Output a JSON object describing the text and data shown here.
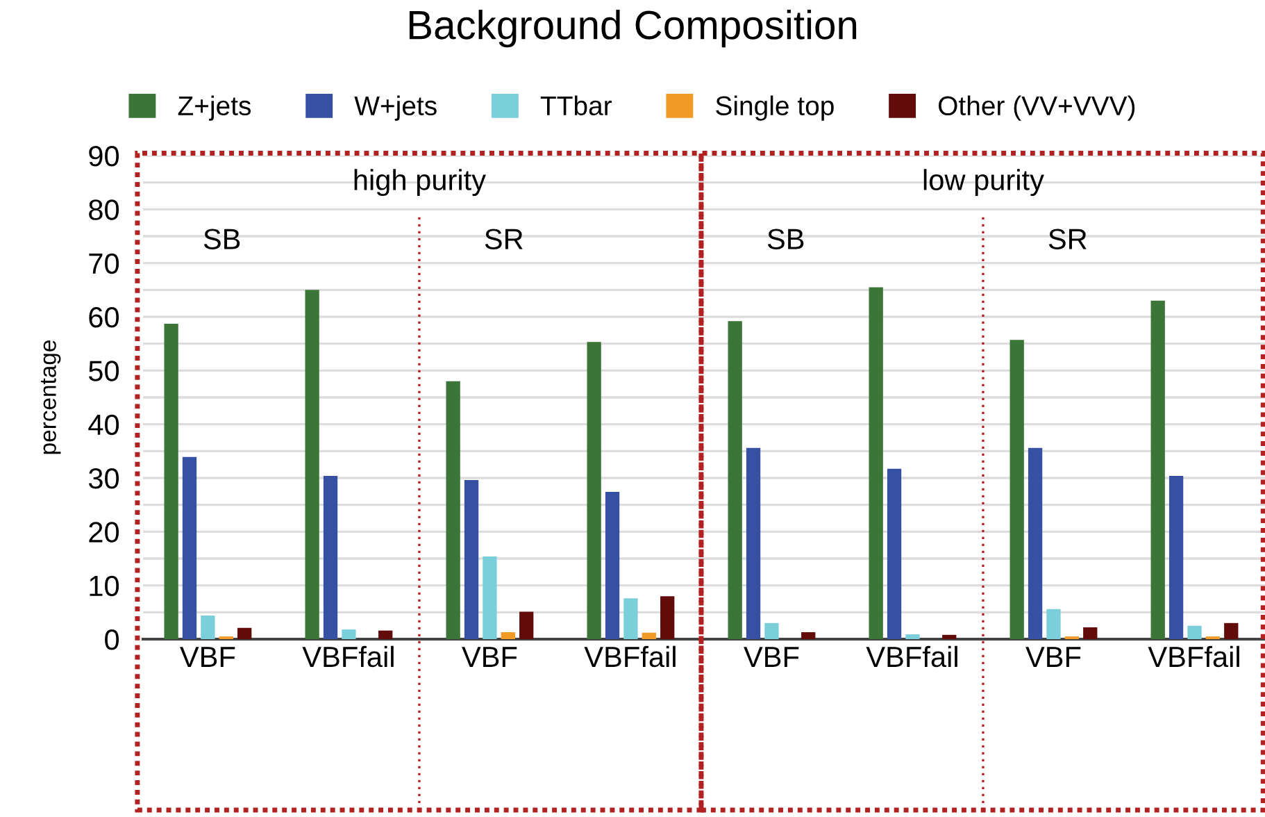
{
  "chart_data": {
    "type": "bar",
    "title": "Background Composition",
    "ylabel": "percentage",
    "categories": [
      "VBF",
      "VBFfail",
      "VBF",
      "VBFfail",
      "VBF",
      "VBFfail",
      "VBF",
      "VBFfail"
    ],
    "series": [
      {
        "name": "Z+jets",
        "color": "#3b7538",
        "values": [
          58.7,
          65,
          48,
          55.3,
          59.2,
          65.5,
          55.7,
          63
        ]
      },
      {
        "name": "W+jets",
        "color": "#3651a4",
        "values": [
          33.9,
          30.4,
          29.6,
          27.4,
          35.6,
          31.7,
          35.6,
          30.4
        ]
      },
      {
        "name": "TTbar",
        "color": "#7acfdb",
        "values": [
          4.4,
          1.8,
          15.4,
          7.6,
          3.0,
          0.9,
          5.6,
          2.5
        ]
      },
      {
        "name": "Single top",
        "color": "#f29a26",
        "values": [
          0.5,
          0,
          1.3,
          1.2,
          0,
          0,
          0.5,
          0.5
        ]
      },
      {
        "name": "Other (VV+VVV)",
        "color": "#620b0b",
        "values": [
          2.1,
          1.6,
          5.1,
          8.0,
          1.3,
          0.8,
          2.2,
          3.0
        ]
      }
    ],
    "ylim": [
      0,
      90
    ],
    "yticks": [
      0,
      {
        "value": 5,
        "label": null
      },
      10,
      {
        "value": 15,
        "label": null
      },
      20,
      {
        "value": 25,
        "label": null
      },
      30,
      {
        "value": 35,
        "label": null
      },
      40,
      {
        "value": 45,
        "label": null
      },
      50,
      {
        "value": 55,
        "label": null
      },
      60,
      {
        "value": 65,
        "label": null
      },
      70,
      {
        "value": 75,
        "label": null
      },
      80,
      {
        "value": 85,
        "label": null
      },
      90
    ],
    "grid": "y",
    "legend": "top",
    "annotations": [
      "high purity",
      "low purity",
      "SB",
      "SR",
      "SB",
      "SR"
    ]
  }
}
